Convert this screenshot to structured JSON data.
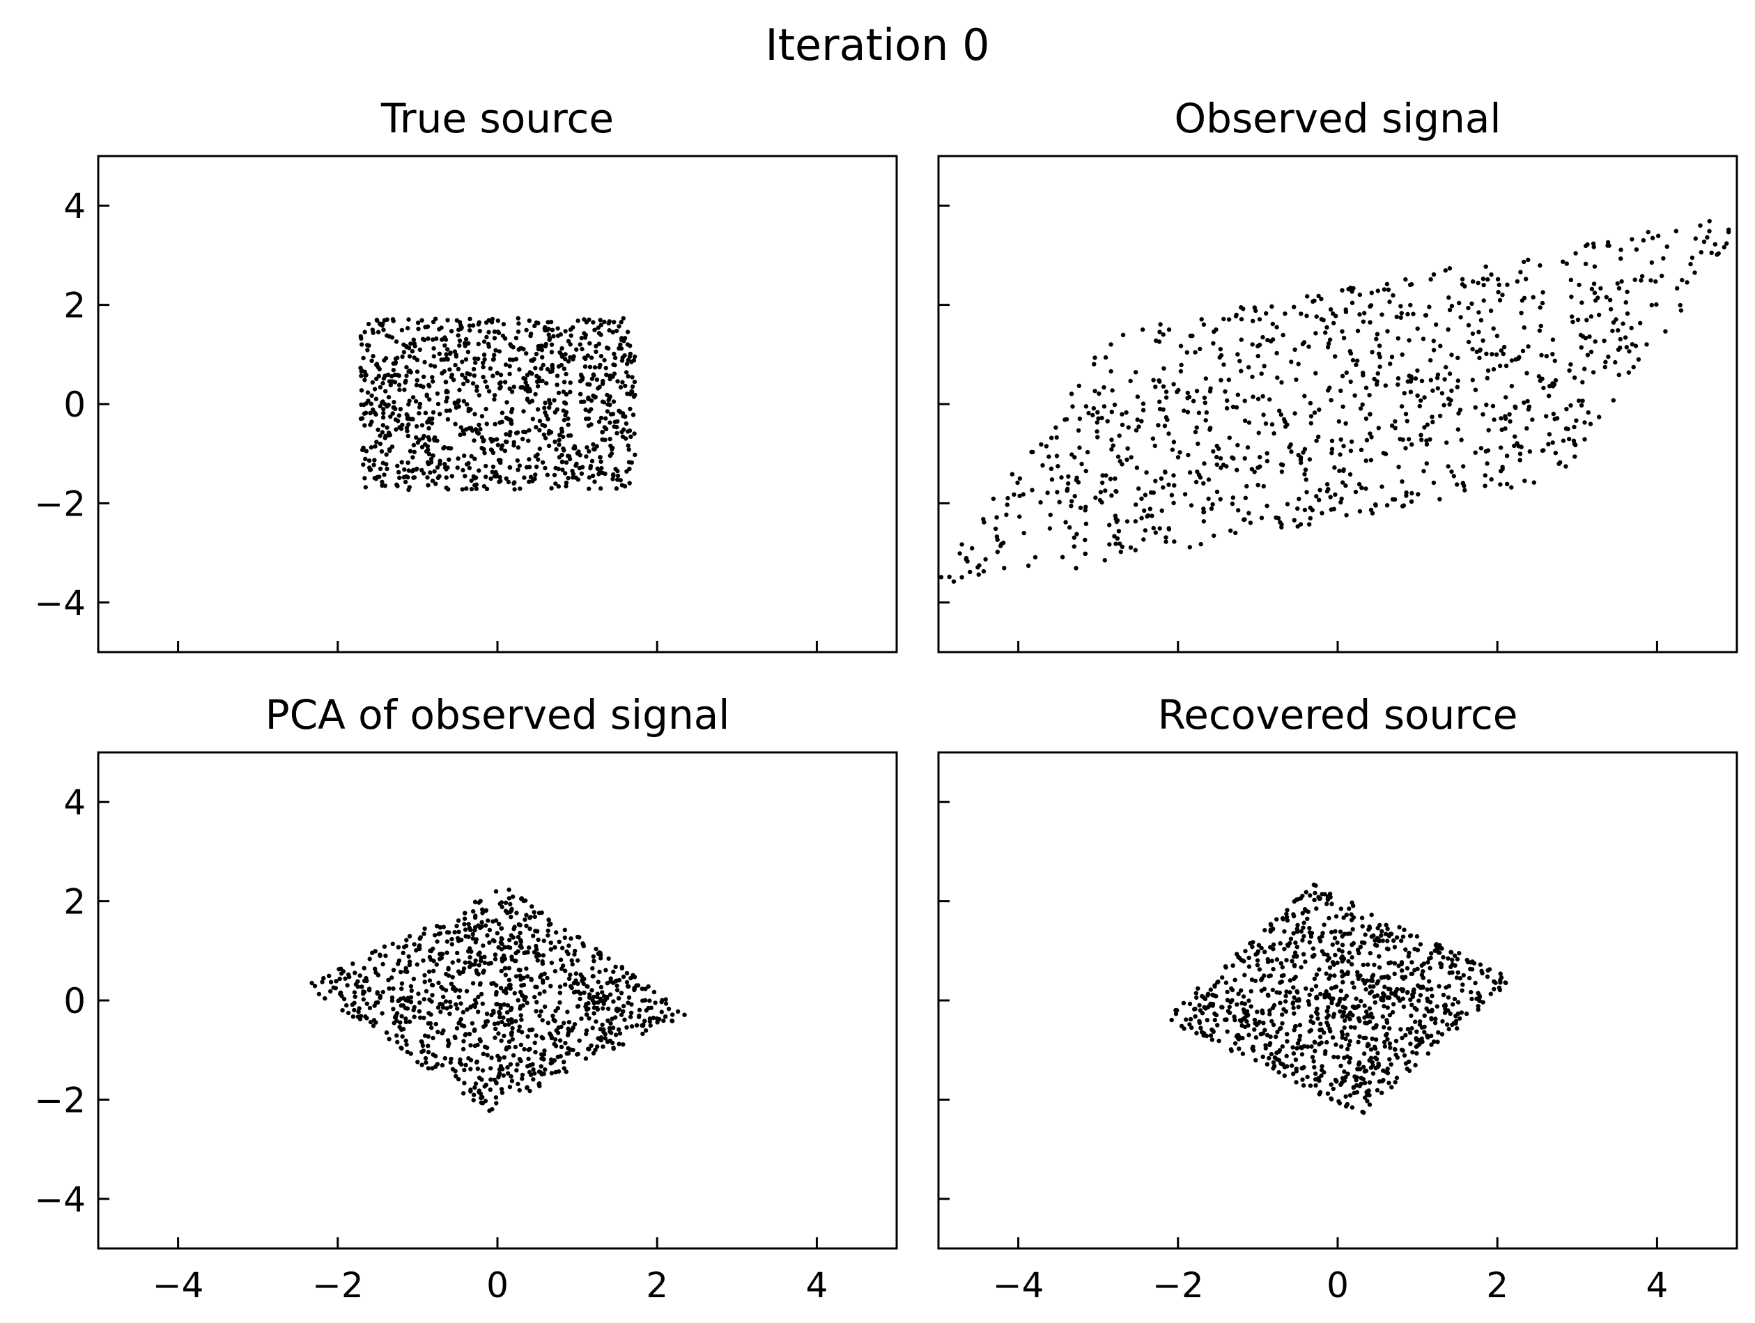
{
  "figure": {
    "suptitle": "Iteration 0"
  },
  "chart_data": [
    {
      "type": "scatter",
      "title": "True source",
      "xlabel": "",
      "ylabel": "",
      "xlim": [
        -5,
        5
      ],
      "ylim": [
        -5,
        5
      ],
      "xticks": [
        -4,
        -2,
        0,
        2,
        4
      ],
      "yticks": [
        -4,
        -2,
        0,
        2,
        4
      ],
      "x_tick_labels_shown": false,
      "y_tick_labels_shown": true,
      "grid": false,
      "marker_color": "#000000",
      "distribution": {
        "shape": "uniform-rectangle",
        "x_range": [
          -1.73,
          1.73
        ],
        "y_range": [
          -1.73,
          1.73
        ],
        "approx_points": 1000
      }
    },
    {
      "type": "scatter",
      "title": "Observed signal",
      "xlabel": "",
      "ylabel": "",
      "xlim": [
        -5,
        5
      ],
      "ylim": [
        -5,
        5
      ],
      "xticks": [
        -4,
        -2,
        0,
        2,
        4
      ],
      "yticks": [
        -4,
        -2,
        0,
        2,
        4
      ],
      "x_tick_labels_shown": false,
      "y_tick_labels_shown": false,
      "grid": false,
      "marker_color": "#000000",
      "distribution": {
        "shape": "parallelogram",
        "corners": [
          [
            -5.2,
            -3.9
          ],
          [
            -2.8,
            1.5
          ],
          [
            5.2,
            3.9
          ],
          [
            2.8,
            -1.5
          ]
        ],
        "approx_points": 1000
      }
    },
    {
      "type": "scatter",
      "title": "PCA of observed signal",
      "xlabel": "",
      "ylabel": "",
      "xlim": [
        -5,
        5
      ],
      "ylim": [
        -5,
        5
      ],
      "xticks": [
        -4,
        -2,
        0,
        2,
        4
      ],
      "yticks": [
        -4,
        -2,
        0,
        2,
        4
      ],
      "x_tick_labels_shown": true,
      "y_tick_labels_shown": true,
      "grid": false,
      "marker_color": "#000000",
      "distribution": {
        "shape": "parallelogram",
        "corners": [
          [
            -2.4,
            0.3
          ],
          [
            0.1,
            2.3
          ],
          [
            2.35,
            -0.2
          ],
          [
            -0.1,
            -2.25
          ]
        ],
        "approx_points": 1000
      }
    },
    {
      "type": "scatter",
      "title": "Recovered source",
      "xlabel": "",
      "ylabel": "",
      "xlim": [
        -5,
        5
      ],
      "ylim": [
        -5,
        5
      ],
      "xticks": [
        -4,
        -2,
        0,
        2,
        4
      ],
      "yticks": [
        -4,
        -2,
        0,
        2,
        4
      ],
      "x_tick_labels_shown": true,
      "y_tick_labels_shown": false,
      "grid": false,
      "marker_color": "#000000",
      "distribution": {
        "shape": "parallelogram",
        "corners": [
          [
            -2.2,
            -0.4
          ],
          [
            -0.3,
            2.35
          ],
          [
            2.35,
            0.4
          ],
          [
            0.3,
            -2.3
          ]
        ],
        "approx_points": 1000
      }
    }
  ]
}
